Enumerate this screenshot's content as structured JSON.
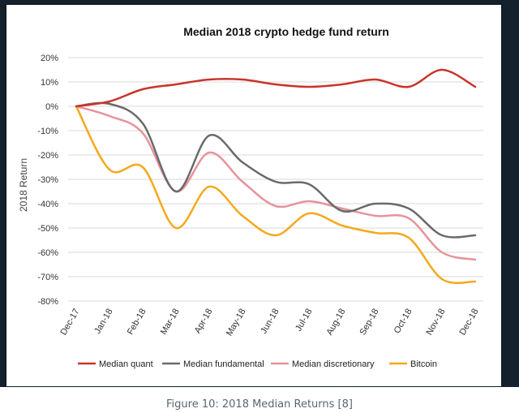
{
  "caption": "Figure 10: 2018 Median Returns [8]",
  "chart_data": {
    "type": "line",
    "title": "Median 2018 crypto hedge fund return",
    "xlabel": "",
    "ylabel": "2018 Return",
    "x": [
      "Dec-17",
      "Jan-18",
      "Feb-18",
      "Mar-18",
      "Apr-18",
      "May-18",
      "Jun-18",
      "Jul-18",
      "Aug-18",
      "Sep-18",
      "Oct-18",
      "Nov-18",
      "Dec-18"
    ],
    "ylim": [
      -80,
      20
    ],
    "yticks": [
      20,
      10,
      0,
      -10,
      -20,
      -30,
      -40,
      -50,
      -60,
      -70,
      -80
    ],
    "ytick_labels": [
      "20%",
      "10%",
      "0%",
      "-10%",
      "-20%",
      "-30%",
      "-40%",
      "-50%",
      "-60%",
      "-70%",
      "-80%"
    ],
    "grid": true,
    "legend_position": "bottom",
    "series": [
      {
        "name": "Median quant",
        "color": "#c9342a",
        "values": [
          0,
          2,
          7,
          9,
          11,
          11,
          9,
          8,
          9,
          11,
          8,
          15,
          8
        ]
      },
      {
        "name": "Median fundamental",
        "color": "#6a6a6a",
        "values": [
          0,
          1,
          -7,
          -35,
          -12,
          -23,
          -31,
          -32,
          -43,
          -40,
          -42,
          -53,
          -53
        ]
      },
      {
        "name": "Median discretionary",
        "color": "#e6939b",
        "values": [
          0,
          -4,
          -11,
          -35,
          -19,
          -31,
          -41,
          -39,
          -42,
          -45,
          -46,
          -60,
          -63
        ]
      },
      {
        "name": "Bitcoin",
        "color": "#f5a81c",
        "values": [
          0,
          -26,
          -25,
          -50,
          -33,
          -45,
          -53,
          -44,
          -49,
          -52,
          -54,
          -71,
          -72
        ]
      }
    ]
  }
}
